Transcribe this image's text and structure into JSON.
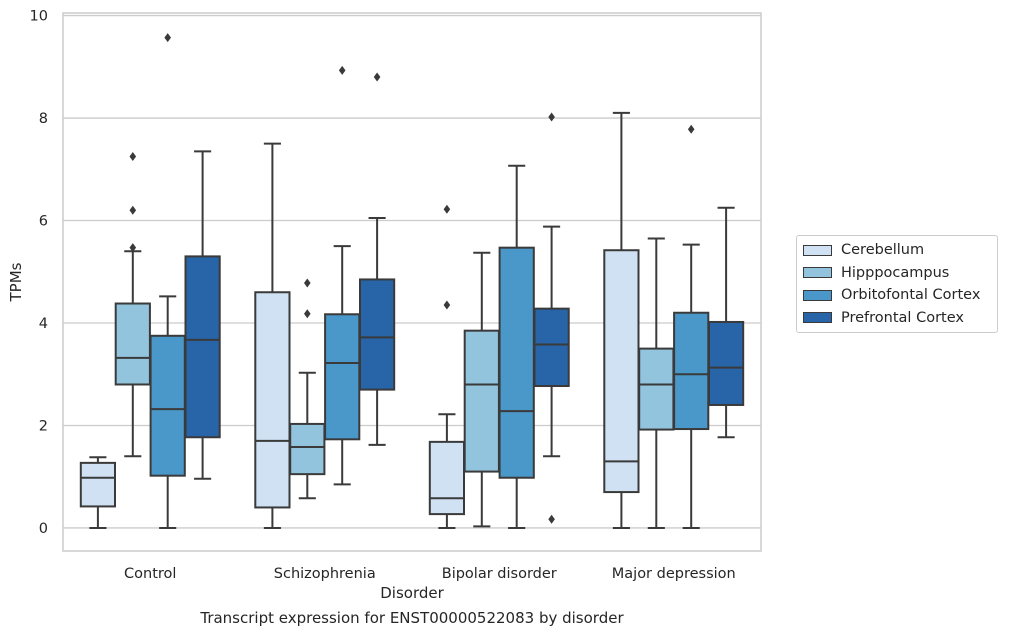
{
  "chart_data": {
    "type": "boxplot",
    "title": "",
    "caption": "Transcript expression for ENST00000522083 by disorder",
    "xlabel": "Disorder",
    "ylabel": "TPMs",
    "ylim": [
      -0.45,
      10.05
    ],
    "yticks": [
      "0",
      "2",
      "4",
      "6",
      "8",
      "10"
    ],
    "ytick_values": [
      0,
      2,
      4,
      6,
      8,
      10
    ],
    "categories": [
      "Control",
      "Schizophrenia",
      "Bipolar disorder",
      "Major depression"
    ],
    "grid": "horizontal",
    "legend_position": "right",
    "series": [
      {
        "name": "Cerebellum",
        "color": "#cfe1f2",
        "boxes": [
          {
            "whislo": 0,
            "q1": 0.42,
            "med": 0.98,
            "q3": 1.27,
            "whishi": 1.38,
            "fliers": []
          },
          {
            "whislo": 0,
            "q1": 0.4,
            "med": 1.7,
            "q3": 4.6,
            "whishi": 7.5,
            "fliers": []
          },
          {
            "whislo": 0,
            "q1": 0.27,
            "med": 0.58,
            "q3": 1.68,
            "whishi": 2.22,
            "fliers": [
              4.35,
              6.22
            ]
          },
          {
            "whislo": 0,
            "q1": 0.7,
            "med": 1.3,
            "q3": 5.42,
            "whishi": 8.1,
            "fliers": []
          }
        ]
      },
      {
        "name": "Hipppocampus",
        "color": "#93c4de",
        "boxes": [
          {
            "whislo": 1.4,
            "q1": 2.8,
            "med": 3.32,
            "q3": 4.38,
            "whishi": 5.4,
            "fliers": [
              5.47,
              6.2,
              7.25
            ]
          },
          {
            "whislo": 0.58,
            "q1": 1.05,
            "med": 1.58,
            "q3": 2.03,
            "whishi": 3.03,
            "fliers": [
              4.18,
              4.78
            ]
          },
          {
            "whislo": 0.03,
            "q1": 1.1,
            "med": 2.8,
            "q3": 3.85,
            "whishi": 5.37,
            "fliers": []
          },
          {
            "whislo": 0,
            "q1": 1.92,
            "med": 2.8,
            "q3": 3.5,
            "whishi": 5.65,
            "fliers": []
          }
        ]
      },
      {
        "name": "Orbitofontal Cortex",
        "color": "#4a98c9",
        "boxes": [
          {
            "whislo": 0,
            "q1": 1.02,
            "med": 2.32,
            "q3": 3.75,
            "whishi": 4.52,
            "fliers": [
              9.57
            ]
          },
          {
            "whislo": 0.85,
            "q1": 1.73,
            "med": 3.22,
            "q3": 4.17,
            "whishi": 5.5,
            "fliers": [
              8.93
            ]
          },
          {
            "whislo": 0,
            "q1": 0.98,
            "med": 2.28,
            "q3": 5.47,
            "whishi": 7.07,
            "fliers": []
          },
          {
            "whislo": 0,
            "q1": 1.93,
            "med": 3.0,
            "q3": 4.2,
            "whishi": 5.53,
            "fliers": [
              7.78
            ]
          }
        ]
      },
      {
        "name": "Prefrontal Cortex",
        "color": "#2764a8",
        "boxes": [
          {
            "whislo": 0.96,
            "q1": 1.77,
            "med": 3.67,
            "q3": 5.3,
            "whishi": 7.35,
            "fliers": []
          },
          {
            "whislo": 1.62,
            "q1": 2.7,
            "med": 3.72,
            "q3": 4.85,
            "whishi": 6.05,
            "fliers": [
              8.8
            ]
          },
          {
            "whislo": 1.4,
            "q1": 2.77,
            "med": 3.58,
            "q3": 4.28,
            "whishi": 5.88,
            "fliers": [
              0.17,
              8.02
            ]
          },
          {
            "whislo": 1.77,
            "q1": 2.4,
            "med": 3.13,
            "q3": 4.02,
            "whishi": 6.25,
            "fliers": []
          }
        ]
      }
    ]
  }
}
